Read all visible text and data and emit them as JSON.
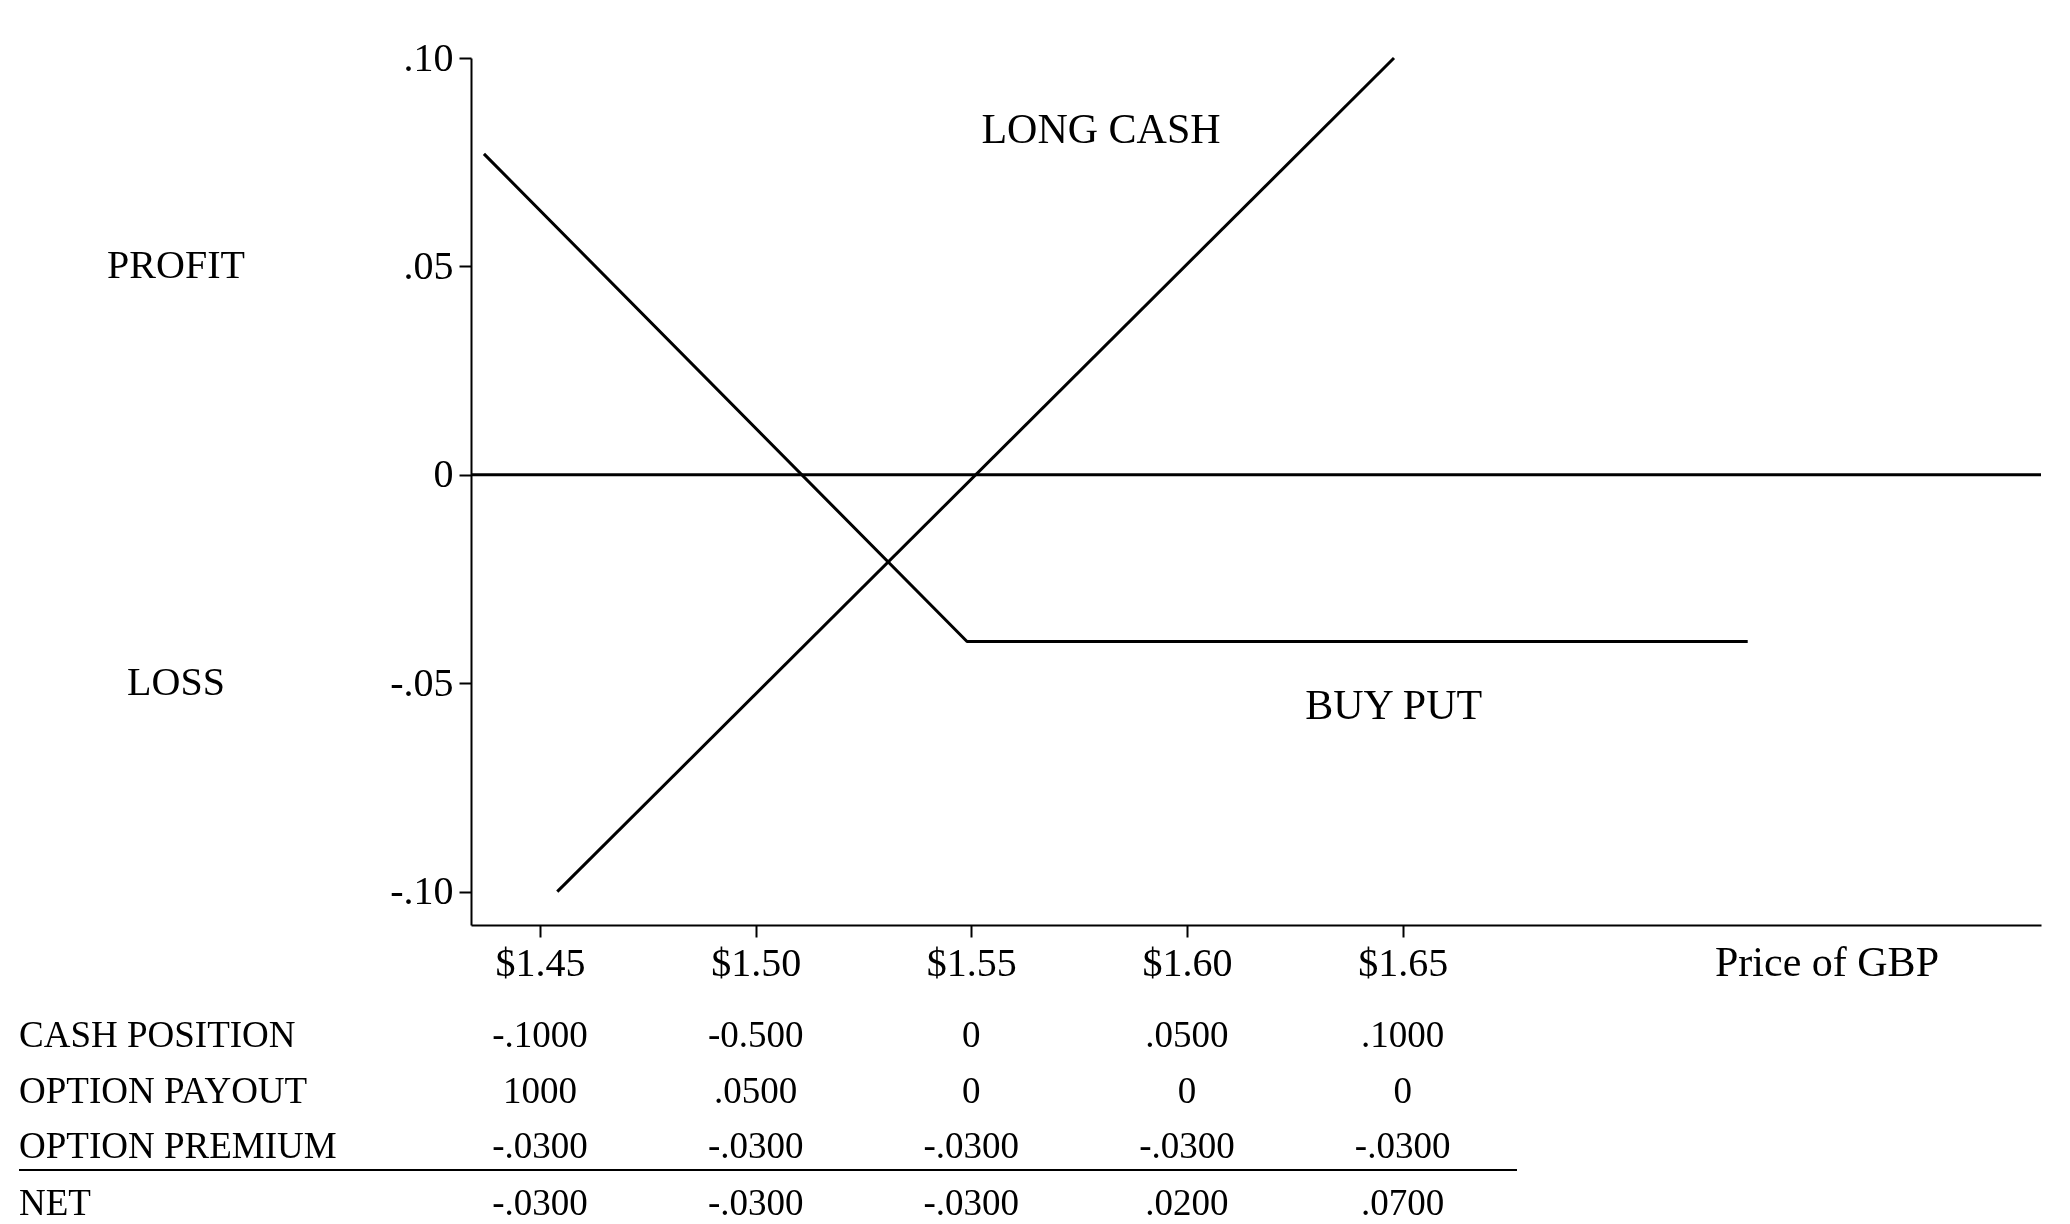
{
  "chart_data": {
    "type": "line",
    "xlabel": "Price of GBP",
    "xlim": [
      1.434,
      1.798
    ],
    "ylim": [
      -0.108,
      0.1
    ],
    "xticks": [
      {
        "value": 1.45,
        "label": "$1.45"
      },
      {
        "value": 1.5,
        "label": "$1.50"
      },
      {
        "value": 1.55,
        "label": "$1.55"
      },
      {
        "value": 1.6,
        "label": "$1.60"
      },
      {
        "value": 1.65,
        "label": "$1.65"
      }
    ],
    "yticks": [
      {
        "value": 0.1,
        "label": ".10"
      },
      {
        "value": 0.05,
        "label": ".05"
      },
      0,
      {
        "value": -0.05,
        "label": "-.05"
      },
      {
        "value": -0.1,
        "label": "-.10"
      }
    ],
    "series": [
      {
        "name": "LONG CASH",
        "color": "#000000",
        "x": [
          1.454,
          1.648
        ],
        "values": [
          -0.1,
          0.1
        ]
      },
      {
        "name": "BUY PUT",
        "color": "#000000",
        "x": [
          1.437,
          1.549,
          1.73
        ],
        "values": [
          0.077,
          -0.04,
          -0.04
        ]
      }
    ],
    "ref_lines": [
      {
        "axis": "y",
        "value": 0,
        "color": "#000000"
      }
    ],
    "annotations": [
      "PROFIT",
      "LOSS",
      "CASH POSITION",
      "-.1000",
      "-0.500",
      "0",
      ".0500",
      ".1000",
      "OPTION PAYOUT",
      "1000",
      ".0500",
      "0",
      "0",
      "0",
      "OPTION PREMIUM",
      "-.0300",
      "-.0300",
      "-.0300",
      "-.0300",
      "-.0300",
      "NET",
      "-.0300",
      "-.0300",
      "-.0300",
      ".0200",
      ".0700"
    ],
    "grid": false,
    "marker": "none",
    "line_style": "solid"
  }
}
